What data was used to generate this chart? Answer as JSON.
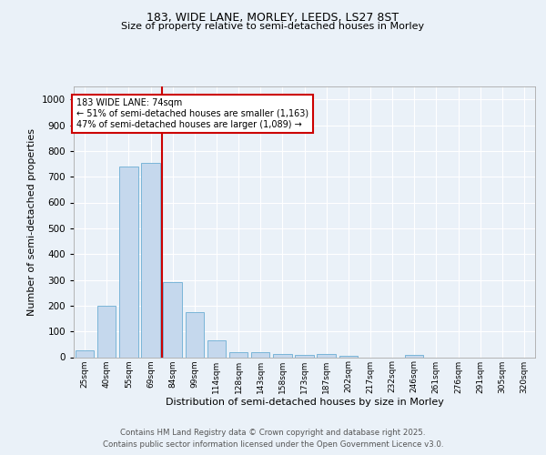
{
  "title1": "183, WIDE LANE, MORLEY, LEEDS, LS27 8ST",
  "title2": "Size of property relative to semi-detached houses in Morley",
  "xlabel": "Distribution of semi-detached houses by size in Morley",
  "ylabel": "Number of semi-detached properties",
  "categories": [
    "25sqm",
    "40sqm",
    "55sqm",
    "69sqm",
    "84sqm",
    "99sqm",
    "114sqm",
    "128sqm",
    "143sqm",
    "158sqm",
    "173sqm",
    "187sqm",
    "202sqm",
    "217sqm",
    "232sqm",
    "246sqm",
    "261sqm",
    "276sqm",
    "291sqm",
    "305sqm",
    "320sqm"
  ],
  "values": [
    25,
    200,
    740,
    755,
    290,
    175,
    65,
    20,
    20,
    13,
    10,
    12,
    5,
    0,
    0,
    8,
    0,
    0,
    0,
    0,
    0
  ],
  "bar_color": "#c5d8ed",
  "bar_edge_color": "#7ab5d8",
  "vline_x": 3.5,
  "vline_color": "#cc0000",
  "annotation_title": "183 WIDE LANE: 74sqm",
  "annotation_line1": "← 51% of semi-detached houses are smaller (1,163)",
  "annotation_line2": "47% of semi-detached houses are larger (1,089) →",
  "annotation_box_color": "#cc0000",
  "ylim": [
    0,
    1050
  ],
  "yticks": [
    0,
    100,
    200,
    300,
    400,
    500,
    600,
    700,
    800,
    900,
    1000
  ],
  "footnote1": "Contains HM Land Registry data © Crown copyright and database right 2025.",
  "footnote2": "Contains public sector information licensed under the Open Government Licence v3.0.",
  "bg_color": "#eaf1f8",
  "plot_bg_color": "#eaf1f8"
}
